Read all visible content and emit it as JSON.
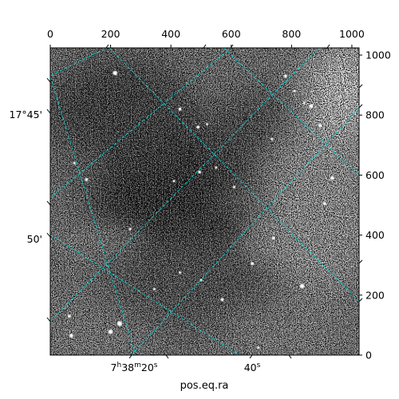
{
  "chart_data": {
    "type": "heatmap",
    "title": "",
    "xlabel": "pos.eq.ra",
    "ylabel": "",
    "colormap": "grayscale",
    "image_description": "noisy astronomical image, dark nebula region in center",
    "pixel_axes": {
      "x": {
        "lim": [
          0,
          1024
        ],
        "ticks": [
          0,
          200,
          400,
          600,
          800,
          1000
        ],
        "position": "top"
      },
      "y": {
        "lim": [
          0,
          1024
        ],
        "ticks": [
          0,
          200,
          400,
          600,
          800,
          1000
        ],
        "position": "right"
      }
    },
    "world_axes": {
      "ra": {
        "position": "bottom",
        "tick_labels": [
          {
            "main": "7",
            "sup1": "h",
            "mid": "38",
            "sup2": "m",
            "end": "20",
            "sup3": "s"
          },
          {
            "main": "40",
            "sup1": "s",
            "mid": "",
            "sup2": "",
            "end": "",
            "sup3": ""
          }
        ]
      },
      "dec": {
        "position": "left",
        "tick_labels": [
          "17°45'",
          "50'"
        ]
      }
    },
    "grid": true,
    "grid_color": "#00d0d0",
    "stars": [
      {
        "x": 215,
        "y": 940,
        "r": 7
      },
      {
        "x": 430,
        "y": 820,
        "r": 5
      },
      {
        "x": 490,
        "y": 760,
        "r": 5
      },
      {
        "x": 520,
        "y": 770,
        "r": 4
      },
      {
        "x": 410,
        "y": 580,
        "r": 4
      },
      {
        "x": 495,
        "y": 610,
        "r": 5
      },
      {
        "x": 550,
        "y": 625,
        "r": 4
      },
      {
        "x": 610,
        "y": 560,
        "r": 4
      },
      {
        "x": 735,
        "y": 720,
        "r": 4
      },
      {
        "x": 780,
        "y": 930,
        "r": 5
      },
      {
        "x": 810,
        "y": 880,
        "r": 4
      },
      {
        "x": 842,
        "y": 840,
        "r": 4
      },
      {
        "x": 865,
        "y": 830,
        "r": 6
      },
      {
        "x": 895,
        "y": 765,
        "r": 5
      },
      {
        "x": 935,
        "y": 590,
        "r": 6
      },
      {
        "x": 910,
        "y": 505,
        "r": 5
      },
      {
        "x": 835,
        "y": 230,
        "r": 7
      },
      {
        "x": 740,
        "y": 390,
        "r": 5
      },
      {
        "x": 670,
        "y": 305,
        "r": 5
      },
      {
        "x": 570,
        "y": 185,
        "r": 5
      },
      {
        "x": 500,
        "y": 250,
        "r": 4
      },
      {
        "x": 430,
        "y": 275,
        "r": 4
      },
      {
        "x": 345,
        "y": 220,
        "r": 4
      },
      {
        "x": 230,
        "y": 105,
        "r": 8
      },
      {
        "x": 200,
        "y": 78,
        "r": 7
      },
      {
        "x": 70,
        "y": 65,
        "r": 6
      },
      {
        "x": 63,
        "y": 130,
        "r": 5
      },
      {
        "x": 120,
        "y": 585,
        "r": 5
      },
      {
        "x": 80,
        "y": 640,
        "r": 4
      },
      {
        "x": 265,
        "y": 420,
        "r": 4
      },
      {
        "x": 690,
        "y": 25,
        "r": 4
      }
    ]
  }
}
